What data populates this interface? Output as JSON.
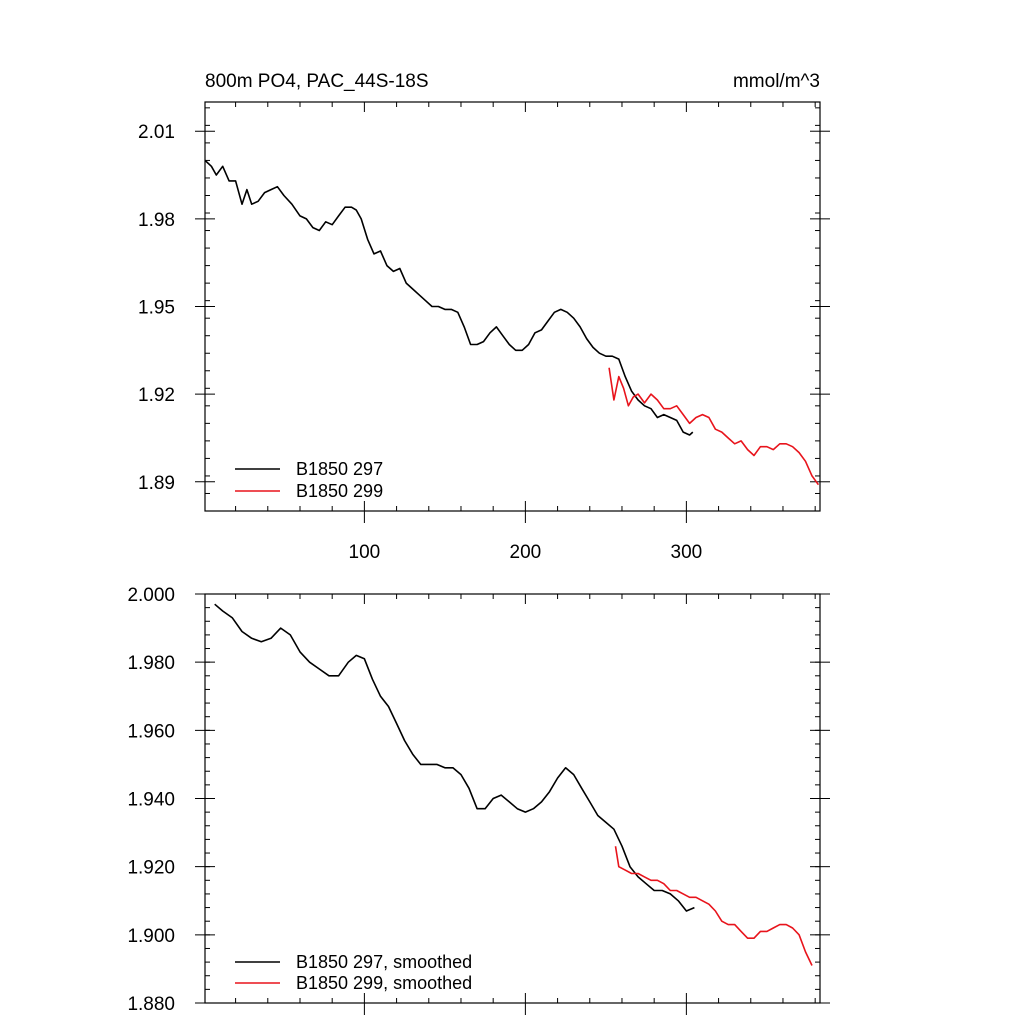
{
  "chart_data": [
    {
      "type": "line",
      "title": "800m PO4, PAC_44S-18S",
      "units": "mmol/m^3",
      "xlim": [
        1,
        383
      ],
      "ylim": [
        1.88,
        2.02
      ],
      "xticks": [
        100,
        200,
        300
      ],
      "xtick_labels": [
        "100",
        "200",
        "300"
      ],
      "yticks": [
        1.89,
        1.92,
        1.95,
        1.98,
        2.01
      ],
      "ytick_labels": [
        "1.89",
        "1.92",
        "1.95",
        "1.98",
        "2.01"
      ],
      "legend_position": "bottom-left",
      "series": [
        {
          "name": "B1850 297",
          "color": "#000000",
          "x": [
            1,
            5,
            8,
            12,
            16,
            20,
            24,
            27,
            30,
            34,
            38,
            42,
            46,
            50,
            55,
            60,
            64,
            68,
            72,
            76,
            80,
            84,
            88,
            92,
            95,
            98,
            102,
            106,
            110,
            114,
            118,
            122,
            126,
            130,
            134,
            138,
            142,
            146,
            150,
            154,
            158,
            162,
            166,
            170,
            174,
            178,
            182,
            186,
            190,
            194,
            198,
            202,
            206,
            210,
            214,
            218,
            222,
            226,
            230,
            234,
            238,
            242,
            246,
            250,
            254,
            258,
            262,
            266,
            270,
            274,
            278,
            282,
            286,
            290,
            294,
            298,
            302,
            304
          ],
          "values": [
            2.0,
            1.998,
            1.995,
            1.998,
            1.993,
            1.993,
            1.985,
            1.99,
            1.985,
            1.986,
            1.989,
            1.99,
            1.991,
            1.988,
            1.985,
            1.981,
            1.98,
            1.977,
            1.976,
            1.979,
            1.978,
            1.981,
            1.984,
            1.984,
            1.983,
            1.98,
            1.973,
            1.968,
            1.969,
            1.964,
            1.962,
            1.963,
            1.958,
            1.956,
            1.954,
            1.952,
            1.95,
            1.95,
            1.949,
            1.949,
            1.948,
            1.943,
            1.937,
            1.937,
            1.938,
            1.941,
            1.943,
            1.94,
            1.937,
            1.935,
            1.935,
            1.937,
            1.941,
            1.942,
            1.945,
            1.948,
            1.949,
            1.948,
            1.946,
            1.943,
            1.939,
            1.936,
            1.934,
            1.933,
            1.933,
            1.932,
            1.926,
            1.921,
            1.918,
            1.916,
            1.915,
            1.912,
            1.913,
            1.912,
            1.911,
            1.907,
            1.906,
            1.907
          ]
        },
        {
          "name": "B1850 299",
          "color": "#e8141c",
          "x": [
            252,
            255,
            258,
            261,
            264,
            267,
            270,
            274,
            278,
            282,
            286,
            290,
            294,
            298,
            302,
            306,
            310,
            314,
            318,
            322,
            326,
            330,
            334,
            338,
            342,
            346,
            350,
            354,
            358,
            362,
            366,
            370,
            374,
            378,
            382
          ],
          "values": [
            1.929,
            1.918,
            1.926,
            1.922,
            1.916,
            1.919,
            1.92,
            1.917,
            1.92,
            1.918,
            1.915,
            1.915,
            1.916,
            1.913,
            1.91,
            1.912,
            1.913,
            1.912,
            1.908,
            1.907,
            1.905,
            1.903,
            1.904,
            1.901,
            1.899,
            1.902,
            1.902,
            1.901,
            1.903,
            1.903,
            1.902,
            1.9,
            1.897,
            1.892,
            1.889
          ]
        }
      ]
    },
    {
      "type": "line",
      "xlim": [
        1,
        383
      ],
      "ylim": [
        1.88,
        2.0
      ],
      "yticks": [
        1.88,
        1.9,
        1.92,
        1.94,
        1.96,
        1.98,
        2.0
      ],
      "ytick_labels": [
        "1.880",
        "1.900",
        "1.920",
        "1.940",
        "1.960",
        "1.980",
        "2.000"
      ],
      "legend_position": "bottom-left",
      "series": [
        {
          "name": "B1850 297, smoothed",
          "color": "#000000",
          "x": [
            7,
            12,
            18,
            24,
            30,
            36,
            42,
            48,
            54,
            60,
            66,
            72,
            78,
            84,
            90,
            95,
            100,
            105,
            110,
            115,
            120,
            125,
            130,
            135,
            140,
            145,
            150,
            155,
            160,
            165,
            170,
            175,
            180,
            185,
            190,
            195,
            200,
            205,
            210,
            215,
            220,
            225,
            230,
            235,
            240,
            245,
            250,
            255,
            260,
            265,
            270,
            275,
            280,
            285,
            290,
            295,
            300,
            305
          ],
          "values": [
            1.997,
            1.995,
            1.993,
            1.989,
            1.987,
            1.986,
            1.987,
            1.99,
            1.988,
            1.983,
            1.98,
            1.978,
            1.976,
            1.976,
            1.98,
            1.982,
            1.981,
            1.975,
            1.97,
            1.967,
            1.962,
            1.957,
            1.953,
            1.95,
            1.95,
            1.95,
            1.949,
            1.949,
            1.947,
            1.943,
            1.937,
            1.937,
            1.94,
            1.941,
            1.939,
            1.937,
            1.936,
            1.937,
            1.939,
            1.942,
            1.946,
            1.949,
            1.947,
            1.943,
            1.939,
            1.935,
            1.933,
            1.931,
            1.926,
            1.92,
            1.917,
            1.915,
            1.913,
            1.913,
            1.912,
            1.91,
            1.907,
            1.908
          ]
        },
        {
          "name": "B1850 299, smoothed",
          "color": "#e8141c",
          "x": [
            256,
            258,
            262,
            266,
            270,
            274,
            278,
            282,
            286,
            290,
            294,
            298,
            302,
            306,
            310,
            314,
            318,
            322,
            326,
            330,
            334,
            338,
            342,
            346,
            350,
            354,
            358,
            362,
            366,
            370,
            374,
            378
          ],
          "values": [
            1.926,
            1.92,
            1.919,
            1.918,
            1.918,
            1.917,
            1.916,
            1.916,
            1.915,
            1.913,
            1.913,
            1.912,
            1.911,
            1.911,
            1.91,
            1.909,
            1.907,
            1.904,
            1.903,
            1.903,
            1.901,
            1.899,
            1.899,
            1.901,
            1.901,
            1.902,
            1.903,
            1.903,
            1.902,
            1.9,
            1.895,
            1.891
          ]
        }
      ]
    }
  ]
}
